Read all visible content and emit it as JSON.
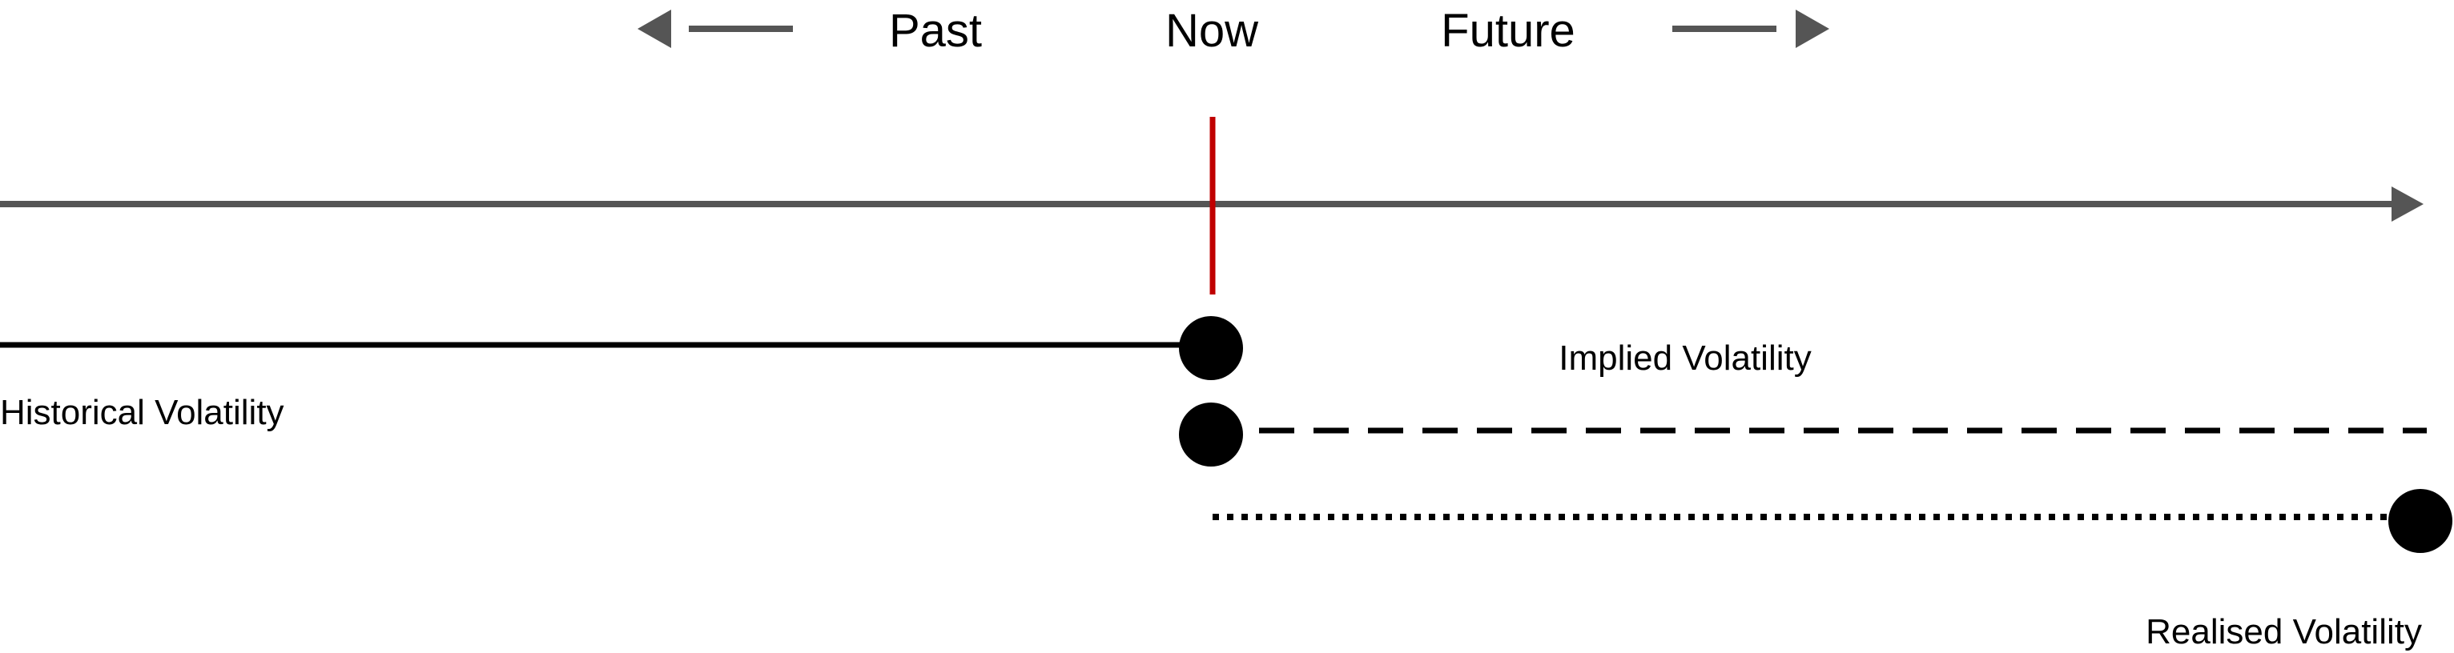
{
  "header": {
    "past_label": "Past",
    "now_label": "Now",
    "future_label": "Future"
  },
  "lines": {
    "historical_label": "Historical Volatility",
    "implied_label": "Implied Volatility",
    "realised_label": "Realised Volatility"
  },
  "colors": {
    "axis": "#555555",
    "now_marker": "#c00000",
    "series": "#000000"
  }
}
